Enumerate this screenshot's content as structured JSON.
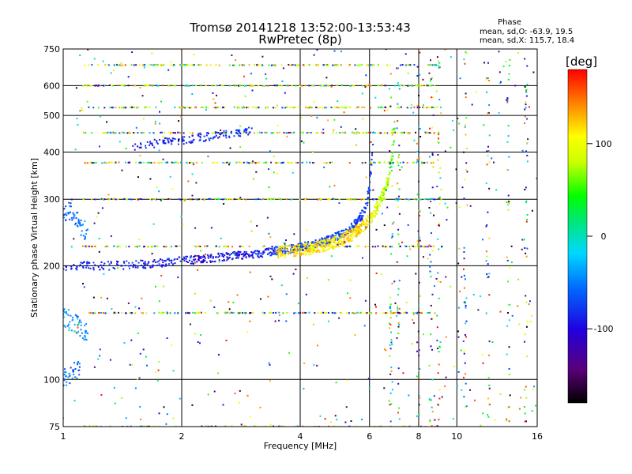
{
  "chart_data": {
    "type": "scatter",
    "title": "Tromsø 20141218 13:52:00-13:53:43",
    "subtitle": "RwPretec (8p)",
    "xlabel": "Frequency [MHz]",
    "ylabel": "Stationary phase Virtual Height [km]",
    "x_scale": "log",
    "y_scale": "log",
    "xlim": [
      1,
      16
    ],
    "ylim": [
      75,
      750
    ],
    "x_ticks": [
      1,
      2,
      4,
      6,
      8,
      10,
      16
    ],
    "y_ticks": [
      75,
      100,
      200,
      300,
      400,
      500,
      600,
      750
    ],
    "grid": true,
    "phase_box": {
      "heading": "Phase",
      "line_o": "mean, sd,O: -63.9, 19.5",
      "line_x": "mean, sd,X: 115.7, 18.4"
    },
    "colorbar": {
      "unit_label": "[deg]",
      "range": [
        -180,
        180
      ],
      "tick_labels": [
        "100",
        "0",
        "-100"
      ],
      "tick_values": [
        100,
        0,
        -100
      ],
      "colormap": "rainbow (black → purple → blue → cyan → green → yellow → orange → red)"
    },
    "horizontal_bands_km": [
      680,
      600,
      525,
      450,
      375,
      300,
      225,
      150,
      75
    ],
    "band_xlim_mhz": [
      1.12,
      9.2
    ],
    "o_trace": [
      [
        1.0,
        200,
        -90
      ],
      [
        1.05,
        199,
        -88
      ],
      [
        1.15,
        200,
        -85
      ],
      [
        1.3,
        200,
        -85
      ],
      [
        1.5,
        201,
        -85
      ],
      [
        1.7,
        203,
        -90
      ],
      [
        1.9,
        205,
        -92
      ],
      [
        2.1,
        207,
        -95
      ],
      [
        2.4,
        210,
        -95
      ],
      [
        2.8,
        213,
        -92
      ],
      [
        3.2,
        216,
        -85
      ],
      [
        3.6,
        220,
        -80
      ],
      [
        4.0,
        224,
        -75
      ],
      [
        4.5,
        230,
        -70
      ],
      [
        5.0,
        240,
        -70
      ],
      [
        5.4,
        252,
        -72
      ],
      [
        5.7,
        268,
        -75
      ],
      [
        5.9,
        290,
        -78
      ],
      [
        6.0,
        320,
        -80
      ],
      [
        6.05,
        360,
        -80
      ],
      [
        6.1,
        420,
        -82
      ]
    ],
    "x_trace": [
      [
        3.5,
        217,
        110
      ],
      [
        4.0,
        220,
        112
      ],
      [
        4.5,
        225,
        115
      ],
      [
        5.0,
        232,
        115
      ],
      [
        5.5,
        244,
        118
      ],
      [
        5.8,
        256,
        118
      ],
      [
        6.1,
        270,
        100
      ],
      [
        6.3,
        290,
        90
      ],
      [
        6.5,
        310,
        80
      ],
      [
        6.7,
        340,
        70
      ],
      [
        6.85,
        380,
        60
      ],
      [
        6.9,
        430,
        55
      ],
      [
        6.95,
        470,
        55
      ]
    ],
    "upper_trace": [
      [
        1.5,
        415,
        -90
      ],
      [
        1.8,
        425,
        -85
      ],
      [
        2.0,
        430,
        -85
      ],
      [
        2.5,
        445,
        -80
      ],
      [
        3.0,
        455,
        -75
      ]
    ],
    "low_freq_trace": [
      [
        1.0,
        280,
        -60
      ],
      [
        1.05,
        265,
        -55
      ],
      [
        1.1,
        250,
        -50
      ],
      [
        1.0,
        145,
        -40
      ],
      [
        1.05,
        140,
        -45
      ],
      [
        1.1,
        135,
        -45
      ],
      [
        1.0,
        102,
        -55
      ],
      [
        1.05,
        105,
        -60
      ]
    ]
  }
}
